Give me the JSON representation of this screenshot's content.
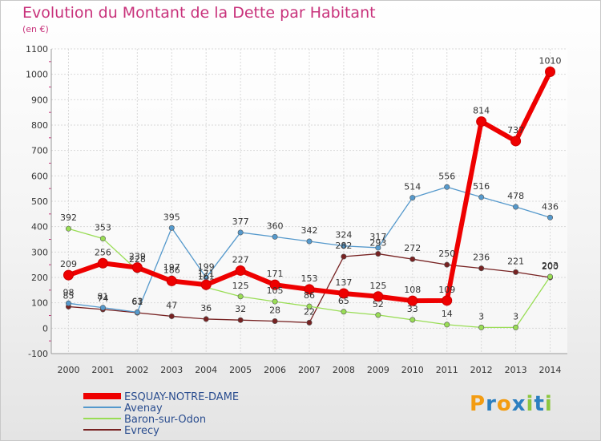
{
  "title": "Evolution du Montant de la Dette par Habitant",
  "subtitle": "(en €)",
  "logo": {
    "text": "Proxiti",
    "letters": [
      "P",
      "r",
      "o",
      "x",
      "i",
      "t",
      "i"
    ],
    "colors": [
      "#f39c12",
      "#2c7fc0",
      "#f39c12",
      "#2c7fc0",
      "#8cc63f",
      "#2c7fc0",
      "#8cc63f"
    ]
  },
  "chart_data": {
    "type": "line",
    "title": "Evolution du Montant de la Dette par Habitant",
    "ylabel": "(en €)",
    "x": [
      "2000",
      "2001",
      "2002",
      "2003",
      "2004",
      "2005",
      "2006",
      "2007",
      "2008",
      "2009",
      "2010",
      "2011",
      "2012",
      "2013",
      "2014"
    ],
    "ylim": [
      -100,
      1100
    ],
    "yticks": [
      "-100",
      "0",
      "100",
      "200",
      "300",
      "400",
      "500",
      "600",
      "700",
      "800",
      "900",
      "1000",
      "1100"
    ],
    "grid": true,
    "legend_position": "bottom-left",
    "series": [
      {
        "name": "ESQUAY-NOTRE-DAME",
        "color": "#ee0000",
        "values": [
          209,
          256,
          239,
          186,
          171,
          227,
          171,
          153,
          137,
          125,
          108,
          109,
          814,
          737,
          1010
        ],
        "labels": [
          "209",
          "256",
          "239",
          "186",
          "171",
          "227",
          "171",
          "153",
          "137",
          "125",
          "108",
          "109",
          "814",
          "737",
          "1010"
        ]
      },
      {
        "name": "Avenay",
        "color": "#5599cc",
        "values": [
          98,
          81,
          63,
          395,
          199,
          377,
          360,
          342,
          324,
          317,
          514,
          556,
          516,
          478,
          436
        ],
        "labels": [
          "98",
          "81",
          "63",
          "395",
          "199",
          "377",
          "360",
          "342",
          "324",
          "317",
          "514",
          "556",
          "516",
          "478",
          "436"
        ]
      },
      {
        "name": "Baron-sur-Odon",
        "color": "#99dd55",
        "values": [
          392,
          353,
          228,
          197,
          161,
          125,
          105,
          86,
          65,
          52,
          33,
          14,
          3,
          3,
          203
        ],
        "labels": [
          "392",
          "353",
          "228",
          "197",
          "161",
          "125",
          "105",
          "86",
          "65",
          "52",
          "33",
          "14",
          "3",
          "3",
          "203"
        ]
      },
      {
        "name": "Evrecy",
        "color": "#772222",
        "values": [
          85,
          74,
          61,
          47,
          36,
          32,
          28,
          22,
          282,
          293,
          272,
          250,
          236,
          221,
          200
        ],
        "labels": [
          "85",
          "74",
          "61",
          "47",
          "36",
          "32",
          "28",
          "22",
          "282",
          "293",
          "272",
          "250",
          "236",
          "221",
          "200"
        ]
      }
    ]
  }
}
